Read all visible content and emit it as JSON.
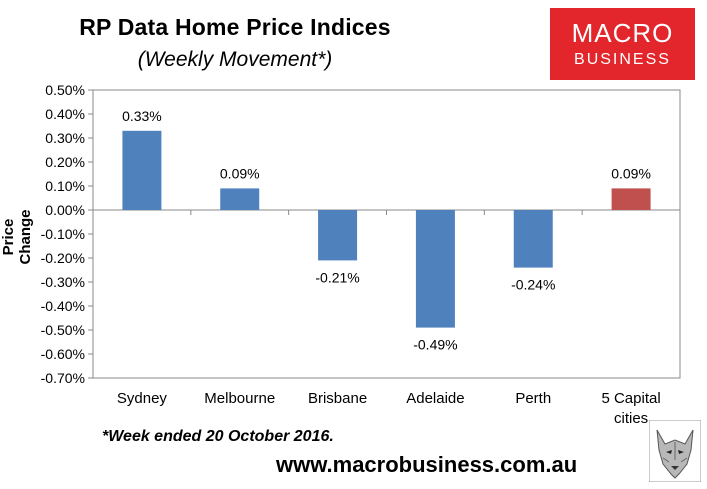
{
  "header": {
    "title": "RP Data Home Price Indices",
    "subtitle": "(Weekly Movement*)"
  },
  "logo": {
    "line1": "MACRO",
    "line2": "BUSINESS",
    "color": "#e3262b"
  },
  "footnote": "*Week ended 20 October 2016.",
  "website": "www.macrobusiness.com.au",
  "chart_data": {
    "type": "bar",
    "ylabel": "Price Change",
    "ylim": [
      -0.7,
      0.5
    ],
    "ytick_step": 0.1,
    "yticks": [
      "0.50%",
      "0.40%",
      "0.30%",
      "0.20%",
      "0.10%",
      "0.00%",
      "-0.10%",
      "-0.20%",
      "-0.30%",
      "-0.40%",
      "-0.50%",
      "-0.60%",
      "-0.70%"
    ],
    "categories": [
      "Sydney",
      "Melbourne",
      "Brisbane",
      "Adelaide",
      "Perth",
      "5 Capital cities"
    ],
    "values": [
      0.33,
      0.09,
      -0.21,
      -0.49,
      -0.24,
      0.09
    ],
    "data_labels": [
      "0.33%",
      "0.09%",
      "-0.21%",
      "-0.49%",
      "-0.24%",
      "0.09%"
    ],
    "colors": [
      "#4f81bd",
      "#4f81bd",
      "#4f81bd",
      "#4f81bd",
      "#4f81bd",
      "#c0504d"
    ],
    "grid": false,
    "legend": "none"
  }
}
